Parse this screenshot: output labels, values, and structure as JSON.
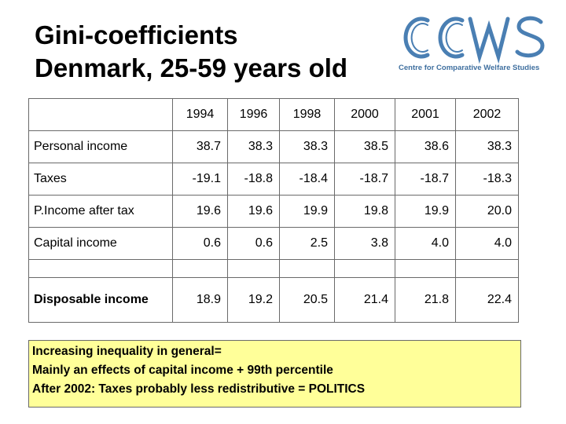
{
  "title": {
    "line1": "Gini-coefficients",
    "line2": "Denmark, 25-59 years old"
  },
  "logo": {
    "text": "CCWS",
    "subtitle": "Centre for Comparative Welfare Studies",
    "color": "#3f6f9f"
  },
  "table": {
    "years": [
      "1994",
      "1996",
      "1998",
      "2000",
      "2001",
      "2002"
    ],
    "rows": [
      {
        "label": "Personal income",
        "values": [
          "38.7",
          "38.3",
          "38.3",
          "38.5",
          "38.6",
          "38.3"
        ]
      },
      {
        "label": "Taxes",
        "values": [
          "-19.1",
          "-18.8",
          "-18.4",
          "-18.7",
          "-18.7",
          "-18.3"
        ]
      },
      {
        "label": "P.Income after tax",
        "values": [
          "19.6",
          "19.6",
          "19.9",
          "19.8",
          "19.9",
          "20.0"
        ]
      },
      {
        "label": "Capital income",
        "values": [
          "0.6",
          "0.6",
          "2.5",
          "3.8",
          "4.0",
          "4.0"
        ]
      },
      {
        "label": "Disposable income",
        "values": [
          "18.9",
          "19.2",
          "20.5",
          "21.4",
          "21.8",
          "22.4"
        ]
      }
    ]
  },
  "note": {
    "lines": [
      "Increasing inequality in general=",
      "Mainly an effects of capital income + 99th percentile",
      "After 2002: Taxes probably less redistributive = POLITICS"
    ],
    "background": "#ffff99"
  }
}
